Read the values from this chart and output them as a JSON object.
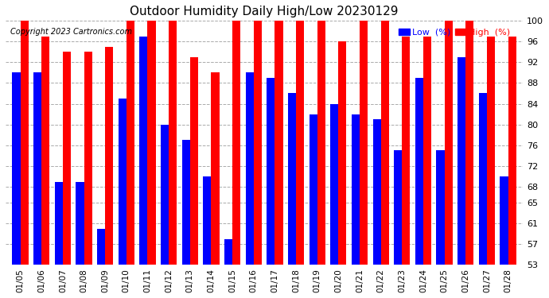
{
  "title": "Outdoor Humidity Daily High/Low 20230129",
  "copyright": "Copyright 2023 Cartronics.com",
  "legend_low": "Low  (%)",
  "legend_high": "High  (%)",
  "dates": [
    "01/05",
    "01/06",
    "01/07",
    "01/08",
    "01/09",
    "01/10",
    "01/11",
    "01/12",
    "01/13",
    "01/14",
    "01/15",
    "01/16",
    "01/17",
    "01/18",
    "01/19",
    "01/20",
    "01/21",
    "01/22",
    "01/23",
    "01/24",
    "01/25",
    "01/26",
    "01/27",
    "01/28"
  ],
  "high": [
    100,
    97,
    94,
    94,
    95,
    100,
    100,
    100,
    93,
    90,
    100,
    100,
    100,
    100,
    100,
    96,
    100,
    100,
    97,
    97,
    100,
    100,
    97,
    97
  ],
  "low": [
    90,
    90,
    69,
    69,
    60,
    85,
    97,
    80,
    77,
    70,
    58,
    90,
    89,
    86,
    82,
    84,
    82,
    81,
    75,
    89,
    75,
    93,
    86,
    70
  ],
  "bar_color_high": "#ff0000",
  "bar_color_low": "#0000ff",
  "bg_color": "#ffffff",
  "grid_color": "#aaaaaa",
  "title_color": "#000000",
  "copyright_color": "#000000",
  "ymin": 53,
  "ymax": 100,
  "yticks": [
    53,
    57,
    61,
    65,
    68,
    72,
    76,
    80,
    84,
    88,
    92,
    96,
    100
  ]
}
